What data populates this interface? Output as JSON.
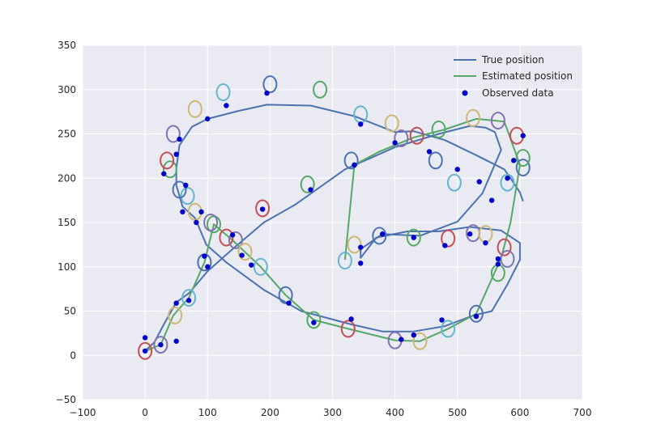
{
  "chart_data": {
    "type": "line",
    "xlim": [
      -100,
      700
    ],
    "ylim": [
      -50,
      350
    ],
    "x_ticks": [
      -100,
      0,
      100,
      200,
      300,
      400,
      500,
      600,
      700
    ],
    "y_ticks": [
      -50,
      0,
      50,
      100,
      150,
      200,
      250,
      300,
      350
    ],
    "grid": true,
    "legend_position": "top-right",
    "colors": {
      "background": "#eaeaf2",
      "grid": "#ffffff",
      "true_position": "#4c72b0",
      "estimated_position": "#55a868",
      "observed": "#0000cc",
      "ellipse_cycle": [
        "#c44e52",
        "#8172b2",
        "#ccb974",
        "#64b5cd",
        "#4c72b0",
        "#55a868"
      ]
    },
    "series": [
      {
        "name": "True position",
        "type": "line",
        "x": [
          0,
          15,
          30,
          50,
          70,
          100,
          140,
          190,
          240,
          270,
          320,
          400,
          470,
          520,
          545,
          560,
          570,
          540,
          500,
          440,
          380,
          345,
          345,
          370,
          420,
          470,
          520,
          570,
          600,
          600,
          580,
          555,
          525,
          480,
          430,
          380,
          330,
          250,
          190,
          130,
          98,
          80,
          60,
          50,
          50,
          55,
          75,
          100,
          150,
          195,
          265,
          335,
          400,
          430,
          480,
          530,
          575,
          585,
          600,
          605
        ],
        "y": [
          5,
          15,
          35,
          60,
          70,
          95,
          120,
          150,
          170,
          185,
          210,
          235,
          250,
          259,
          257,
          252,
          232,
          183,
          151,
          135,
          137,
          120,
          110,
          133,
          140,
          140,
          145,
          141,
          127,
          108,
          80,
          50,
          45,
          33,
          27,
          27,
          35,
          50,
          74,
          105,
          125,
          155,
          168,
          192,
          211,
          237,
          258,
          267,
          276,
          283,
          282,
          270,
          252,
          253,
          243,
          226,
          210,
          200,
          184,
          174
        ]
      },
      {
        "name": "Estimated position",
        "type": "line",
        "x": [
          0,
          25,
          45,
          70,
          95,
          110,
          140,
          185,
          225,
          270,
          325,
          400,
          440,
          485,
          530,
          570,
          585,
          600,
          575,
          530,
          480,
          430,
          375,
          335,
          320
        ],
        "y": [
          5,
          12,
          45,
          65,
          105,
          148,
          130,
          100,
          68,
          40,
          30,
          17,
          16,
          30,
          47,
          110,
          150,
          215,
          264,
          267,
          255,
          246,
          230,
          215,
          108
        ]
      },
      {
        "name": "Observed data",
        "type": "scatter",
        "x": [
          0,
          0,
          25,
          50,
          50,
          70,
          95,
          100,
          140,
          155,
          170,
          188,
          230,
          270,
          330,
          410,
          430,
          475,
          530,
          565,
          565,
          545,
          520,
          480,
          430,
          380,
          345,
          345,
          400,
          455,
          500,
          535,
          555,
          580,
          590,
          605,
          90,
          130,
          195,
          265,
          335,
          345,
          65,
          50,
          55,
          60,
          82,
          100,
          30
        ],
        "y": [
          5,
          20,
          12,
          16,
          59,
          62,
          112,
          100,
          136,
          113,
          102,
          165,
          59,
          37,
          41,
          18,
          23,
          40,
          44,
          103,
          109,
          127,
          137,
          124,
          133,
          137,
          104,
          122,
          240,
          230,
          210,
          196,
          175,
          200,
          220,
          248,
          162,
          282,
          296,
          187,
          215,
          261,
          192,
          227,
          244,
          162,
          150,
          267,
          205
        ]
      }
    ],
    "ellipses": {
      "x": [
        0,
        25,
        48,
        70,
        95,
        110,
        130,
        145,
        160,
        185,
        225,
        270,
        325,
        400,
        440,
        485,
        530,
        565,
        575,
        580,
        335,
        320,
        375,
        430,
        485,
        525,
        545,
        580,
        605,
        605,
        595,
        565,
        525,
        495,
        465,
        470,
        435,
        410,
        395,
        345,
        330,
        260,
        188,
        105,
        80,
        68,
        55,
        40,
        35,
        45,
        80,
        125,
        200,
        280
      ],
      "y": [
        5,
        12,
        45,
        65,
        105,
        148,
        133,
        130,
        117,
        100,
        68,
        40,
        30,
        17,
        16,
        30,
        47,
        93,
        122,
        109,
        125,
        107,
        135,
        133,
        132,
        138,
        137,
        195,
        212,
        223,
        248,
        265,
        268,
        195,
        220,
        255,
        248,
        245,
        262,
        272,
        220,
        193,
        166,
        150,
        162,
        180,
        187,
        210,
        220,
        250,
        278,
        297,
        306,
        300
      ]
    }
  },
  "legend": {
    "items": [
      {
        "label": "True position",
        "kind": "line",
        "color": "#4c72b0"
      },
      {
        "label": "Estimated position",
        "kind": "line",
        "color": "#55a868"
      },
      {
        "label": "Observed data",
        "kind": "dot",
        "color": "#0000cc"
      }
    ]
  }
}
